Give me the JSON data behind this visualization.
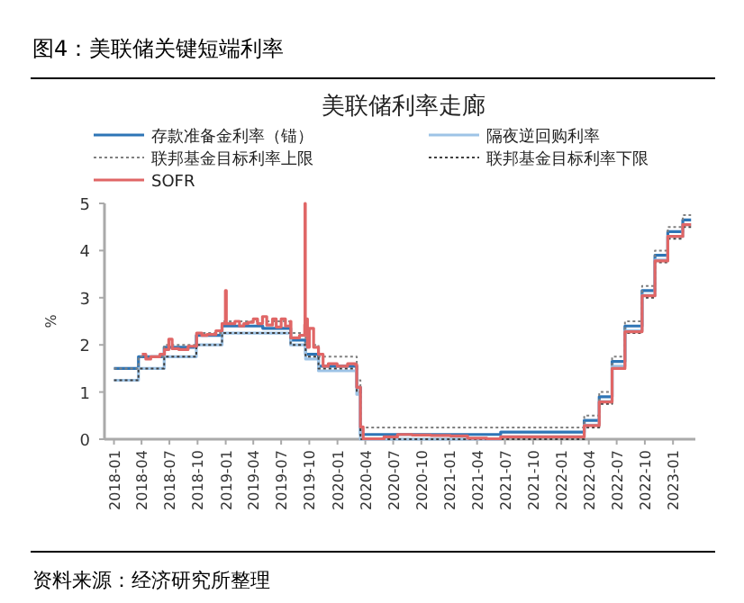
{
  "chart_data": {
    "type": "step",
    "title": "图4：美联储关键短端利率",
    "subtitle": "美联储利率走廊",
    "ylabel": "%",
    "xlim": [
      "2017-12-01",
      "2023-03-15"
    ],
    "ylim": [
      0,
      5
    ],
    "yticks": [
      0,
      1,
      2,
      3,
      4,
      5
    ],
    "xticks": [
      "2018-01",
      "2018-04",
      "2018-07",
      "2018-10",
      "2019-01",
      "2019-04",
      "2019-07",
      "2019-10",
      "2020-01",
      "2020-04",
      "2020-07",
      "2020-10",
      "2021-01",
      "2021-04",
      "2021-07",
      "2021-10",
      "2022-01",
      "2022-04",
      "2022-07",
      "2022-10",
      "2023-01"
    ],
    "grid": false,
    "legend": "top",
    "annotations": [
      "资料来源：经济研究所整理"
    ],
    "series": [
      {
        "name": "存款准备金利率（锚）",
        "color": "#2e75b6",
        "line_style": "solid",
        "x": [
          "2018-01-01",
          "2018-03-22",
          "2018-06-14",
          "2018-09-27",
          "2018-12-20",
          "2019-05-02",
          "2019-08-01",
          "2019-09-19",
          "2019-10-31",
          "2020-03-04",
          "2020-03-16",
          "2021-06-17",
          "2022-03-17",
          "2022-05-05",
          "2022-06-16",
          "2022-07-28",
          "2022-09-22",
          "2022-11-03",
          "2022-12-15",
          "2023-02-02",
          "2023-03-01"
        ],
        "values": [
          1.5,
          1.75,
          1.95,
          2.2,
          2.4,
          2.35,
          2.1,
          1.8,
          1.55,
          1.1,
          0.1,
          0.15,
          0.4,
          0.9,
          1.65,
          2.4,
          3.15,
          3.9,
          4.4,
          4.65,
          4.65
        ]
      },
      {
        "name": "隔夜逆回购利率",
        "color": "#9dc3e6",
        "line_style": "solid",
        "x": [
          "2018-01-01",
          "2018-03-22",
          "2018-06-14",
          "2018-09-27",
          "2018-12-20",
          "2019-08-01",
          "2019-09-19",
          "2019-10-31",
          "2020-03-04",
          "2020-03-16",
          "2021-06-17",
          "2022-03-17",
          "2022-05-05",
          "2022-06-16",
          "2022-07-28",
          "2022-09-22",
          "2022-11-03",
          "2022-12-15",
          "2023-02-02",
          "2023-03-01"
        ],
        "values": [
          1.25,
          1.5,
          1.75,
          2.0,
          2.25,
          2.0,
          1.7,
          1.45,
          0.95,
          0.0,
          0.05,
          0.3,
          0.8,
          1.55,
          2.3,
          3.05,
          3.8,
          4.3,
          4.55,
          4.55
        ]
      },
      {
        "name": "联邦基金目标利率上限",
        "color": "#808080",
        "line_style": "dotted",
        "x": [
          "2018-01-01",
          "2018-03-22",
          "2018-06-14",
          "2018-09-27",
          "2018-12-20",
          "2019-08-01",
          "2019-09-19",
          "2019-10-31",
          "2020-03-04",
          "2020-03-16",
          "2022-03-17",
          "2022-05-05",
          "2022-06-16",
          "2022-07-28",
          "2022-09-22",
          "2022-11-03",
          "2022-12-15",
          "2023-02-02",
          "2023-03-01"
        ],
        "values": [
          1.5,
          1.75,
          2.0,
          2.25,
          2.5,
          2.25,
          2.0,
          1.75,
          1.25,
          0.25,
          0.5,
          1.0,
          1.75,
          2.5,
          3.25,
          4.0,
          4.5,
          4.75,
          4.75
        ]
      },
      {
        "name": "联邦基金目标利率下限",
        "color": "#404040",
        "line_style": "dotted",
        "x": [
          "2018-01-01",
          "2018-03-22",
          "2018-06-14",
          "2018-09-27",
          "2018-12-20",
          "2019-08-01",
          "2019-09-19",
          "2019-10-31",
          "2020-03-04",
          "2020-03-16",
          "2022-03-17",
          "2022-05-05",
          "2022-06-16",
          "2022-07-28",
          "2022-09-22",
          "2022-11-03",
          "2022-12-15",
          "2023-02-02",
          "2023-03-01"
        ],
        "values": [
          1.25,
          1.5,
          1.75,
          2.0,
          2.25,
          2.0,
          1.75,
          1.5,
          1.0,
          0.0,
          0.25,
          0.75,
          1.5,
          2.25,
          3.0,
          3.75,
          4.25,
          4.5,
          4.5
        ]
      },
      {
        "name": "SOFR",
        "color": "#e06666",
        "line_style": "solid",
        "x": [
          "2018-04-02",
          "2018-04-15",
          "2018-05-01",
          "2018-05-31",
          "2018-06-15",
          "2018-06-29",
          "2018-07-10",
          "2018-08-01",
          "2018-08-31",
          "2018-09-28",
          "2018-10-15",
          "2018-11-01",
          "2018-11-30",
          "2018-12-20",
          "2018-12-31",
          "2019-01-03",
          "2019-01-31",
          "2019-02-15",
          "2019-03-01",
          "2019-03-15",
          "2019-04-01",
          "2019-04-15",
          "2019-05-01",
          "2019-05-15",
          "2019-06-03",
          "2019-06-15",
          "2019-07-01",
          "2019-07-15",
          "2019-07-31",
          "2019-08-02",
          "2019-08-30",
          "2019-09-16",
          "2019-09-17",
          "2019-09-18",
          "2019-09-25",
          "2019-10-01",
          "2019-10-15",
          "2019-10-31",
          "2019-11-15",
          "2019-12-02",
          "2019-12-31",
          "2020-01-15",
          "2020-02-03",
          "2020-02-28",
          "2020-03-04",
          "2020-03-16",
          "2020-03-25",
          "2020-06-01",
          "2020-07-15",
          "2020-09-01",
          "2020-11-01",
          "2021-01-04",
          "2021-03-01",
          "2021-05-03",
          "2021-06-17",
          "2021-09-01",
          "2021-12-01",
          "2022-03-01",
          "2022-03-17",
          "2022-05-05",
          "2022-06-16",
          "2022-07-28",
          "2022-09-22",
          "2022-11-03",
          "2022-12-15",
          "2023-02-02",
          "2023-03-01"
        ],
        "values": [
          1.8,
          1.7,
          1.75,
          1.8,
          1.9,
          2.12,
          1.92,
          1.9,
          1.97,
          2.25,
          2.2,
          2.22,
          2.3,
          2.45,
          3.15,
          2.45,
          2.5,
          2.4,
          2.45,
          2.48,
          2.55,
          2.45,
          2.6,
          2.42,
          2.55,
          2.38,
          2.55,
          2.4,
          2.5,
          2.15,
          2.2,
          2.43,
          5.0,
          2.55,
          1.95,
          2.35,
          1.95,
          1.8,
          1.55,
          1.6,
          1.55,
          1.55,
          1.6,
          1.58,
          1.1,
          0.26,
          0.01,
          0.05,
          0.1,
          0.09,
          0.08,
          0.07,
          0.02,
          0.01,
          0.05,
          0.05,
          0.05,
          0.05,
          0.29,
          0.79,
          1.5,
          2.28,
          3.04,
          3.78,
          4.3,
          4.55,
          4.55
        ]
      }
    ]
  }
}
